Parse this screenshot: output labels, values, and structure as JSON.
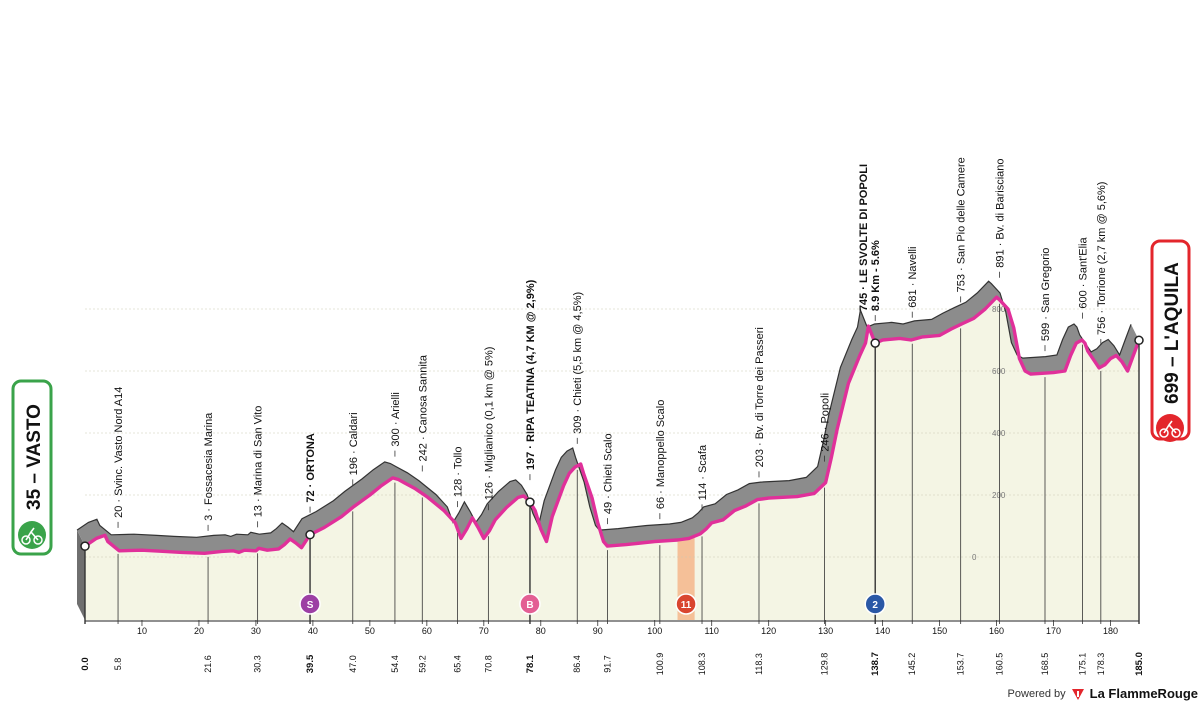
{
  "start": {
    "altitude": "35",
    "name": "VASTO"
  },
  "finish": {
    "altitude": "699",
    "name": "L'AQUILA"
  },
  "footer": {
    "powered_by": "Powered by",
    "brand": "La FlammeRouge"
  },
  "colors": {
    "profile_fill": "#f4f5e4",
    "road": "#e0309a",
    "terrain": "#8c8c8c",
    "start_green": "#3aa34a",
    "finish_red": "#e3262c",
    "sprint": "#9c3fa4",
    "bonus": "#e35f94",
    "feed_zone": "#f5ad7f",
    "kom": "#2a58a6"
  },
  "chart_data": {
    "type": "area",
    "x_unit": "km",
    "xlim": [
      0,
      185
    ],
    "ylim": [
      0,
      900
    ],
    "profile": [
      [
        0,
        35
      ],
      [
        2,
        60
      ],
      [
        3.5,
        70
      ],
      [
        4,
        50
      ],
      [
        6,
        20
      ],
      [
        10,
        22
      ],
      [
        14,
        18
      ],
      [
        17,
        15
      ],
      [
        21,
        12
      ],
      [
        24,
        18
      ],
      [
        26,
        20
      ],
      [
        27,
        15
      ],
      [
        28,
        22
      ],
      [
        30,
        20
      ],
      [
        30.5,
        28
      ],
      [
        32,
        22
      ],
      [
        34,
        26
      ],
      [
        35,
        40
      ],
      [
        36,
        58
      ],
      [
        37,
        45
      ],
      [
        38,
        30
      ],
      [
        39.5,
        72
      ],
      [
        42,
        95
      ],
      [
        45,
        130
      ],
      [
        47,
        160
      ],
      [
        50,
        200
      ],
      [
        52,
        230
      ],
      [
        54,
        255
      ],
      [
        55,
        250
      ],
      [
        56,
        240
      ],
      [
        58,
        220
      ],
      [
        60,
        195
      ],
      [
        63,
        150
      ],
      [
        65,
        110
      ],
      [
        66,
        60
      ],
      [
        67,
        90
      ],
      [
        68,
        126
      ],
      [
        69,
        95
      ],
      [
        70,
        60
      ],
      [
        71,
        85
      ],
      [
        72,
        120
      ],
      [
        74,
        160
      ],
      [
        76,
        192
      ],
      [
        77,
        197
      ],
      [
        78,
        180
      ],
      [
        79,
        150
      ],
      [
        80,
        90
      ],
      [
        81,
        50
      ],
      [
        82,
        130
      ],
      [
        84,
        230
      ],
      [
        85,
        270
      ],
      [
        86,
        290
      ],
      [
        87,
        300
      ],
      [
        87.5,
        270
      ],
      [
        89,
        190
      ],
      [
        90,
        110
      ],
      [
        91,
        50
      ],
      [
        91.7,
        35
      ],
      [
        95,
        40
      ],
      [
        100,
        50
      ],
      [
        104,
        55
      ],
      [
        106,
        60
      ],
      [
        108,
        75
      ],
      [
        109,
        90
      ],
      [
        110,
        110
      ],
      [
        112,
        120
      ],
      [
        114,
        150
      ],
      [
        116,
        165
      ],
      [
        118,
        185
      ],
      [
        120,
        190
      ],
      [
        125,
        195
      ],
      [
        128,
        205
      ],
      [
        130,
        240
      ],
      [
        131,
        320
      ],
      [
        132,
        410
      ],
      [
        134,
        560
      ],
      [
        136,
        650
      ],
      [
        137,
        690
      ],
      [
        137.5,
        745
      ],
      [
        138.7,
        690
      ],
      [
        140,
        700
      ],
      [
        143,
        705
      ],
      [
        145,
        700
      ],
      [
        147,
        710
      ],
      [
        150,
        715
      ],
      [
        152,
        735
      ],
      [
        154,
        753
      ],
      [
        156,
        770
      ],
      [
        158,
        800
      ],
      [
        160,
        838
      ],
      [
        160.5,
        830
      ],
      [
        162,
        800
      ],
      [
        163,
        740
      ],
      [
        164,
        640
      ],
      [
        165,
        600
      ],
      [
        166,
        590
      ],
      [
        170,
        595
      ],
      [
        172,
        600
      ],
      [
        173,
        650
      ],
      [
        174,
        690
      ],
      [
        175,
        700
      ],
      [
        175.5,
        690
      ],
      [
        176,
        665
      ],
      [
        178,
        610
      ],
      [
        179,
        620
      ],
      [
        180,
        640
      ],
      [
        181,
        650
      ],
      [
        182,
        630
      ],
      [
        183,
        600
      ],
      [
        184,
        650
      ],
      [
        185,
        699
      ]
    ],
    "km_ticks": [
      {
        "pos": 10,
        "label": "10"
      },
      {
        "pos": 20,
        "label": "20"
      },
      {
        "pos": 30,
        "label": "30"
      },
      {
        "pos": 40,
        "label": "40"
      },
      {
        "pos": 50,
        "label": "50"
      },
      {
        "pos": 60,
        "label": "60"
      },
      {
        "pos": 70,
        "label": "70"
      },
      {
        "pos": 80,
        "label": "80"
      },
      {
        "pos": 90,
        "label": "90"
      },
      {
        "pos": 100,
        "label": "100"
      },
      {
        "pos": 110,
        "label": "110"
      },
      {
        "pos": 120,
        "label": "120"
      },
      {
        "pos": 130,
        "label": "130"
      },
      {
        "pos": 140,
        "label": "140"
      },
      {
        "pos": 150,
        "label": "150"
      },
      {
        "pos": 160,
        "label": "160"
      },
      {
        "pos": 170,
        "label": "170"
      },
      {
        "pos": 180,
        "label": "180"
      }
    ],
    "km_marks": [
      {
        "km": 0,
        "label": "0.0",
        "bold": true
      },
      {
        "km": 5.8,
        "label": "5.8"
      },
      {
        "km": 21.6,
        "label": "21.6"
      },
      {
        "km": 30.3,
        "label": "30.3"
      },
      {
        "km": 39.5,
        "label": "39.5",
        "bold": true
      },
      {
        "km": 47.0,
        "label": "47.0"
      },
      {
        "km": 54.4,
        "label": "54.4"
      },
      {
        "km": 59.2,
        "label": "59.2"
      },
      {
        "km": 65.4,
        "label": "65.4"
      },
      {
        "km": 70.8,
        "label": "70.8"
      },
      {
        "km": 78.1,
        "label": "78.1",
        "bold": true
      },
      {
        "km": 86.4,
        "label": "86.4"
      },
      {
        "km": 91.7,
        "label": "91.7"
      },
      {
        "km": 100.9,
        "label": "100.9"
      },
      {
        "km": 108.3,
        "label": "108.3"
      },
      {
        "km": 118.3,
        "label": "118.3"
      },
      {
        "km": 129.8,
        "label": "129.8"
      },
      {
        "km": 138.7,
        "label": "138.7",
        "bold": true
      },
      {
        "km": 145.2,
        "label": "145.2"
      },
      {
        "km": 153.7,
        "label": "153.7"
      },
      {
        "km": 160.5,
        "label": "160.5"
      },
      {
        "km": 168.5,
        "label": "168.5"
      },
      {
        "km": 175.1,
        "label": "175.1"
      },
      {
        "km": 178.3,
        "label": "178.3"
      },
      {
        "km": 185.0,
        "label": "185.0",
        "bold": true
      }
    ],
    "places": [
      {
        "km": 5.8,
        "lines": [
          "20 · Svinc. Vasto Nord A14"
        ]
      },
      {
        "km": 21.6,
        "lines": [
          "3 · Fossacesia Marina"
        ]
      },
      {
        "km": 30.3,
        "lines": [
          "13 · Marina di San Vito"
        ]
      },
      {
        "km": 39.5,
        "lines": [
          "72 · ORTONA"
        ],
        "bold": true
      },
      {
        "km": 47.0,
        "lines": [
          "196 · Caldari"
        ]
      },
      {
        "km": 54.4,
        "lines": [
          "300 · Arielli"
        ]
      },
      {
        "km": 59.2,
        "lines": [
          "242 · Canosa Sannita"
        ]
      },
      {
        "km": 65.4,
        "lines": [
          "128 · Tollo"
        ]
      },
      {
        "km": 70.8,
        "lines": [
          "126 · Miglianico (0,1 km @ 5%)"
        ]
      },
      {
        "km": 78.1,
        "lines": [
          "197 · RIPA TEATINA (4,7 KM @ 2,9%)"
        ],
        "bold": true
      },
      {
        "km": 86.4,
        "lines": [
          "309 · Chieti (5,5 km @ 4,5%)"
        ]
      },
      {
        "km": 91.7,
        "lines": [
          "49 · Chieti Scalo"
        ]
      },
      {
        "km": 100.9,
        "lines": [
          "66 · Manoppello Scalo"
        ]
      },
      {
        "km": 108.3,
        "lines": [
          "114 · Scafa"
        ]
      },
      {
        "km": 118.3,
        "lines": [
          "203 · Bv. di Torre dei Passeri"
        ]
      },
      {
        "km": 129.8,
        "lines": [
          "246 · Popoli"
        ]
      },
      {
        "km": 138.7,
        "lines": [
          "745 · LE SVOLTE DI POPOLI",
          "8.9 Km - 5.6%"
        ],
        "bold": true
      },
      {
        "km": 145.2,
        "lines": [
          "681 · Navelli"
        ]
      },
      {
        "km": 153.7,
        "lines": [
          "753 · San Pio delle Camere"
        ]
      },
      {
        "km": 160.5,
        "lines": [
          "891 · Bv. di Barisciano"
        ]
      },
      {
        "km": 168.5,
        "lines": [
          "599 · San Gregorio"
        ]
      },
      {
        "km": 175.1,
        "lines": [
          "600 · Sant'Elia"
        ]
      },
      {
        "km": 178.3,
        "lines": [
          "756 · Torrione (2,7 km @ 5,6%)"
        ]
      }
    ],
    "alt_ticks": [
      {
        "alt": 200,
        "label": "200"
      },
      {
        "alt": 400,
        "label": "400"
      },
      {
        "alt": 600,
        "label": "600"
      },
      {
        "alt": 800,
        "label": "800"
      }
    ],
    "zero_label": "0",
    "markers": [
      {
        "km": 39.5,
        "kind": "sprint",
        "label": "S"
      },
      {
        "km": 78.1,
        "kind": "bonus",
        "label": "B"
      },
      {
        "km": 138.7,
        "kind": "kom",
        "label": "2"
      }
    ],
    "feed_zone": {
      "from": 104,
      "to": 107,
      "label": "11"
    }
  }
}
